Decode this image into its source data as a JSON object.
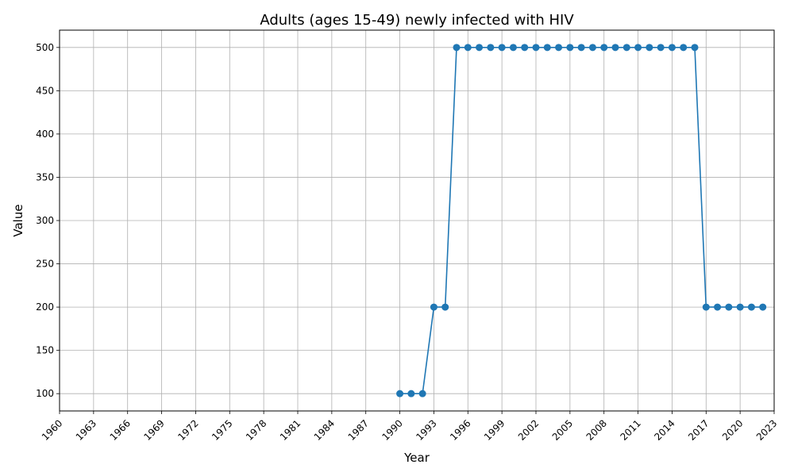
{
  "chart_data": {
    "type": "line",
    "title": "Adults (ages 15-49) newly infected with HIV",
    "xlabel": "Year",
    "ylabel": "Value",
    "xlim": [
      1960,
      2023
    ],
    "ylim": [
      80,
      520
    ],
    "x_ticks": [
      "1960",
      "1963",
      "1966",
      "1969",
      "1972",
      "1975",
      "1978",
      "1981",
      "1984",
      "1987",
      "1990",
      "1993",
      "1996",
      "1999",
      "2002",
      "2005",
      "2008",
      "2011",
      "2014",
      "2017",
      "2020",
      "2023"
    ],
    "y_ticks": [
      "100",
      "150",
      "200",
      "250",
      "300",
      "350",
      "400",
      "450",
      "500"
    ],
    "grid": true,
    "color": "#1f77b4",
    "marker": "circle",
    "series": [
      {
        "x": [
          1990,
          1991,
          1992,
          1993,
          1994,
          1995,
          1996,
          1997,
          1998,
          1999,
          2000,
          2001,
          2002,
          2003,
          2004,
          2005,
          2006,
          2007,
          2008,
          2009,
          2010,
          2011,
          2012,
          2013,
          2014,
          2015,
          2016,
          2017,
          2018,
          2019,
          2020,
          2021,
          2022
        ],
        "values": [
          100,
          100,
          100,
          200,
          200,
          500,
          500,
          500,
          500,
          500,
          500,
          500,
          500,
          500,
          500,
          500,
          500,
          500,
          500,
          500,
          500,
          500,
          500,
          500,
          500,
          500,
          500,
          200,
          200,
          200,
          200,
          200,
          200
        ]
      }
    ]
  }
}
